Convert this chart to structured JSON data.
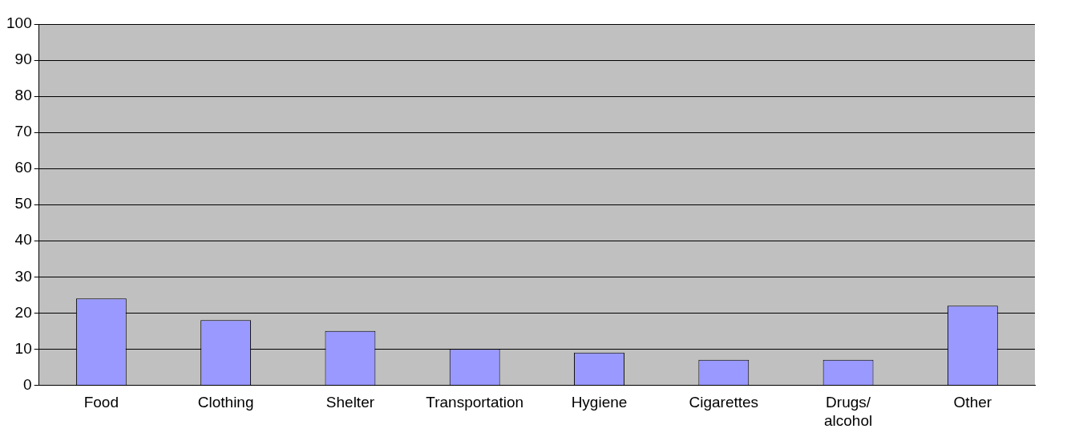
{
  "chart_data": {
    "type": "bar",
    "categories": [
      "Food",
      "Clothing",
      "Shelter",
      "Transportation",
      "Hygiene",
      "Cigarettes",
      "Drugs/ alcohol",
      "Other"
    ],
    "values": [
      24,
      18,
      15,
      10,
      9,
      7,
      7,
      22
    ],
    "color": "#9999ff",
    "ylim": [
      0,
      100
    ],
    "yticks": [
      0,
      10,
      20,
      30,
      40,
      50,
      60,
      70,
      80,
      90,
      100
    ],
    "grid": "y",
    "legend": false
  }
}
